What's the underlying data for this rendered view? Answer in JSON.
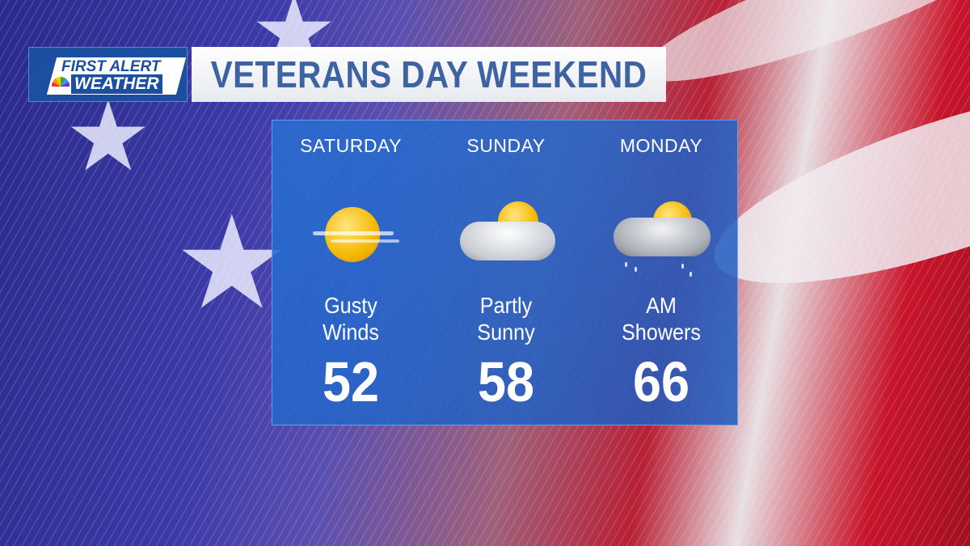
{
  "logo": {
    "line1": "FIRST ALERT",
    "line2": "WEATHER"
  },
  "title": "VETERANS DAY WEEKEND",
  "forecast": [
    {
      "day": "SATURDAY",
      "icon": "sunny-windy-icon",
      "condition_line1": "Gusty",
      "condition_line2": "Winds",
      "temp": "52"
    },
    {
      "day": "SUNDAY",
      "icon": "partly-sunny-icon",
      "condition_line1": "Partly",
      "condition_line2": "Sunny",
      "temp": "58"
    },
    {
      "day": "MONDAY",
      "icon": "showers-icon",
      "condition_line1": "AM",
      "condition_line2": "Showers",
      "temp": "66"
    }
  ],
  "colors": {
    "panel": "#2a6fd0",
    "title_text": "#3d63a3",
    "logo_bg": "#1d4fa0"
  }
}
